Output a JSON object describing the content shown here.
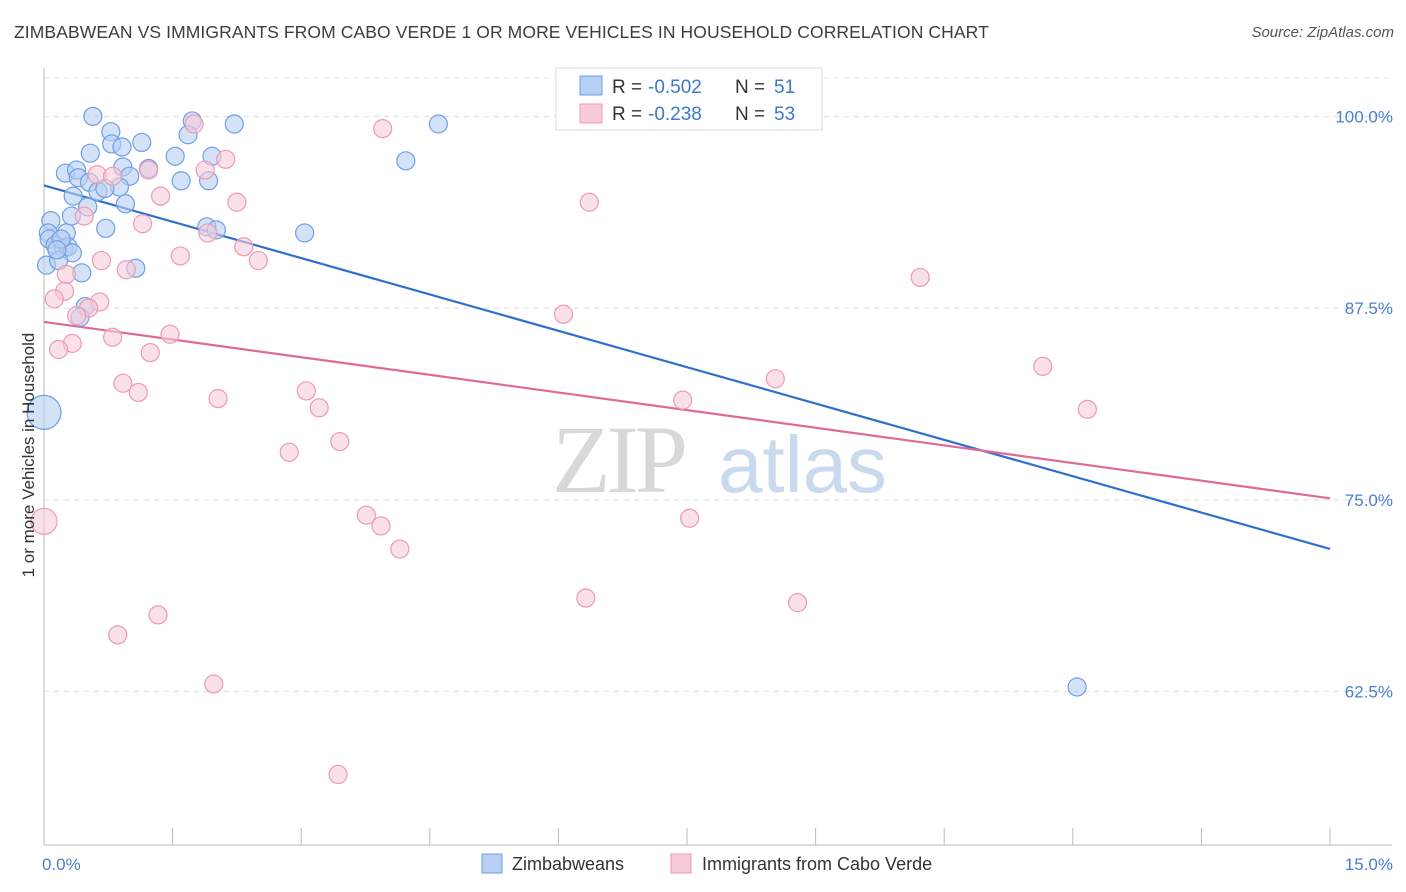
{
  "title": "ZIMBABWEAN VS IMMIGRANTS FROM CABO VERDE 1 OR MORE VEHICLES IN HOUSEHOLD CORRELATION CHART",
  "source": "Source: ZipAtlas.com",
  "watermark": {
    "zip": "ZIP",
    "atlas": "atlas"
  },
  "chart_data": {
    "type": "scatter",
    "ylabel": "1 or more Vehicles in Household",
    "xlim": [
      0,
      15
    ],
    "ylim": [
      52.5,
      102.5
    ],
    "x_tick_labels": [
      {
        "value": 0,
        "label": "0.0%"
      },
      {
        "value": 15,
        "label": "15.0%"
      }
    ],
    "y_tick_labels": [
      {
        "value": 100,
        "label": "100.0%"
      },
      {
        "value": 87.5,
        "label": "87.5%"
      },
      {
        "value": 75,
        "label": "75.0%"
      },
      {
        "value": 62.5,
        "label": "62.5%"
      }
    ],
    "stats_box": [
      {
        "series": "Zimbabweans",
        "r_label": "R =",
        "r": "-0.502",
        "n_label": "N =",
        "n": "51"
      },
      {
        "series": "Immigrants from Cabo Verde",
        "r_label": "R =",
        "r": "-0.238",
        "n_label": "N =",
        "n": "53"
      }
    ],
    "series": [
      {
        "name": "Zimbabweans",
        "color": "#6f9fe4",
        "fill": "#b7cff3",
        "line_color": "#3070cc",
        "trend": {
          "x0": 0,
          "y0": 95.5,
          "x1": 15,
          "y1": 71.8
        },
        "points": [
          [
            0.57,
            100.0
          ],
          [
            0.78,
            99.0
          ],
          [
            1.73,
            99.7
          ],
          [
            2.22,
            99.5
          ],
          [
            4.6,
            99.5
          ],
          [
            0.79,
            98.2
          ],
          [
            1.14,
            98.3
          ],
          [
            1.68,
            98.8
          ],
          [
            0.54,
            97.6
          ],
          [
            0.91,
            98.0
          ],
          [
            1.53,
            97.4
          ],
          [
            1.96,
            97.4
          ],
          [
            4.22,
            97.1
          ],
          [
            0.25,
            96.3
          ],
          [
            0.38,
            96.5
          ],
          [
            0.92,
            96.7
          ],
          [
            1.22,
            96.6
          ],
          [
            0.4,
            96.0
          ],
          [
            0.53,
            95.7
          ],
          [
            1.0,
            96.1
          ],
          [
            1.6,
            95.8
          ],
          [
            1.92,
            95.8
          ],
          [
            0.88,
            95.4
          ],
          [
            0.63,
            95.1
          ],
          [
            0.71,
            95.3
          ],
          [
            0.34,
            94.8
          ],
          [
            0.95,
            94.3
          ],
          [
            0.51,
            94.1
          ],
          [
            0.32,
            93.5
          ],
          [
            0.08,
            93.2
          ],
          [
            0.26,
            92.4
          ],
          [
            0.72,
            92.7
          ],
          [
            1.9,
            92.8
          ],
          [
            2.01,
            92.6
          ],
          [
            3.04,
            92.4
          ],
          [
            0.05,
            92.4
          ],
          [
            0.06,
            92.0
          ],
          [
            0.13,
            91.6
          ],
          [
            0.23,
            91.4
          ],
          [
            0.28,
            91.5
          ],
          [
            0.33,
            91.1
          ],
          [
            0.03,
            90.3
          ],
          [
            0.17,
            90.6
          ],
          [
            0.44,
            89.8
          ],
          [
            1.07,
            90.1
          ],
          [
            0.48,
            87.6
          ],
          [
            0.42,
            86.9
          ],
          [
            0.0,
            80.7
          ],
          [
            12.05,
            62.8
          ],
          [
            0.2,
            92.0
          ],
          [
            0.15,
            91.3
          ]
        ],
        "sizes": [
          9,
          9,
          9,
          9,
          9,
          9,
          9,
          9,
          9,
          9,
          9,
          9,
          9,
          9,
          9,
          9,
          9,
          9,
          9,
          9,
          9,
          9,
          9,
          9,
          9,
          9,
          9,
          9,
          9,
          9,
          9,
          9,
          9,
          9,
          9,
          9,
          9,
          9,
          9,
          9,
          9,
          9,
          9,
          9,
          9,
          9,
          9,
          17,
          9,
          9,
          9
        ]
      },
      {
        "name": "Immigrants from Cabo Verde",
        "color": "#ec9ab5",
        "fill": "#f7cbd9",
        "line_color": "#e0699a",
        "trend": {
          "x0": 0,
          "y0": 86.6,
          "x1": 15,
          "y1": 75.1
        },
        "points": [
          [
            1.75,
            99.5
          ],
          [
            3.95,
            99.2
          ],
          [
            2.12,
            97.2
          ],
          [
            1.88,
            96.5
          ],
          [
            1.22,
            96.5
          ],
          [
            0.62,
            96.2
          ],
          [
            0.8,
            96.1
          ],
          [
            1.36,
            94.8
          ],
          [
            2.25,
            94.4
          ],
          [
            6.36,
            94.4
          ],
          [
            0.47,
            93.5
          ],
          [
            1.15,
            93.0
          ],
          [
            1.91,
            92.4
          ],
          [
            2.33,
            91.5
          ],
          [
            1.59,
            90.9
          ],
          [
            2.5,
            90.6
          ],
          [
            0.67,
            90.6
          ],
          [
            0.96,
            90.0
          ],
          [
            0.26,
            89.7
          ],
          [
            10.22,
            89.5
          ],
          [
            0.24,
            88.6
          ],
          [
            0.12,
            88.1
          ],
          [
            0.65,
            87.9
          ],
          [
            0.52,
            87.5
          ],
          [
            6.06,
            87.1
          ],
          [
            0.38,
            87.0
          ],
          [
            1.47,
            85.8
          ],
          [
            0.8,
            85.6
          ],
          [
            0.33,
            85.2
          ],
          [
            0.17,
            84.8
          ],
          [
            1.24,
            84.6
          ],
          [
            11.65,
            83.7
          ],
          [
            8.53,
            82.9
          ],
          [
            0.92,
            82.6
          ],
          [
            3.06,
            82.1
          ],
          [
            1.1,
            82.0
          ],
          [
            2.03,
            81.6
          ],
          [
            7.45,
            81.5
          ],
          [
            3.21,
            81.0
          ],
          [
            12.17,
            80.9
          ],
          [
            3.45,
            78.8
          ],
          [
            2.86,
            78.1
          ],
          [
            3.76,
            74.0
          ],
          [
            3.93,
            73.3
          ],
          [
            7.53,
            73.8
          ],
          [
            4.15,
            71.8
          ],
          [
            6.32,
            68.6
          ],
          [
            8.79,
            68.3
          ],
          [
            1.33,
            67.5
          ],
          [
            0.86,
            66.2
          ],
          [
            1.98,
            63.0
          ],
          [
            3.43,
            57.1
          ],
          [
            0.0,
            73.6
          ]
        ],
        "sizes": [
          9,
          9,
          9,
          9,
          9,
          9,
          9,
          9,
          9,
          9,
          9,
          9,
          9,
          9,
          9,
          9,
          9,
          9,
          9,
          9,
          9,
          9,
          9,
          9,
          9,
          9,
          9,
          9,
          9,
          9,
          9,
          9,
          9,
          9,
          9,
          9,
          9,
          9,
          9,
          9,
          9,
          9,
          9,
          9,
          9,
          9,
          9,
          9,
          9,
          9,
          9,
          9,
          13
        ]
      }
    ]
  }
}
